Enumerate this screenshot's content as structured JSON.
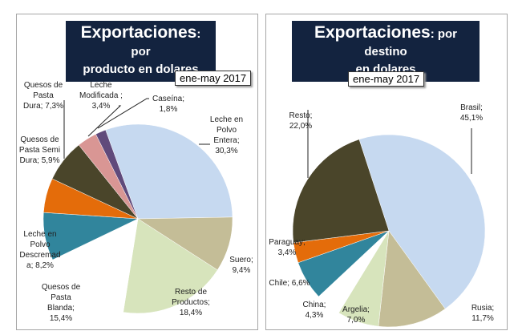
{
  "chart_data": [
    {
      "type": "pie",
      "title_main": "Exportaciones",
      "title_sub1": ": por",
      "title_sub2": "producto en dolares",
      "period": "ene-may 2017",
      "categories": [
        "Leche en Polvo Entera",
        "Suero",
        "Resto de Productos",
        "Quesos de Pasta Blanda",
        "Leche en Polvo Descremada",
        "Quesos de Pasta Semi Dura",
        "Quesos de Pasta Dura",
        "Leche Modificada",
        "Caseína"
      ],
      "values": [
        30.3,
        9.4,
        18.4,
        15.4,
        8.2,
        5.9,
        7.3,
        3.4,
        1.8
      ],
      "labels": [
        "Leche en Polvo Entera; 30,3%",
        "Suero; 9,4%",
        "Resto de Productos; 18,4%",
        "Quesos de Pasta Blanda; 15,4%",
        "Leche en Polvo Descremad a; 8,2%",
        "Quesos de Pasta Semi Dura; 5,9%",
        "Quesos de Pasta Dura; 7,3%",
        "Leche Modificada ; 3,4%",
        "Caseína; 1,8%"
      ],
      "colors": [
        "#c6d9f0",
        "#c4bd97",
        "#d7e4bc",
        "#ffffff",
        "#31859c",
        "#e46c0a",
        "#4a452a",
        "#d99694",
        "#604a7b"
      ]
    },
    {
      "type": "pie",
      "title_main": "Exportaciones",
      "title_sub1": ": por destino",
      "title_sub2": "en dolares",
      "period": "ene-may 2017",
      "categories": [
        "Brasil",
        "Rusia",
        "Argelia",
        "China",
        "Chile",
        "Paraguay",
        "Resto"
      ],
      "values": [
        45.1,
        11.7,
        7.0,
        4.3,
        6.6,
        3.4,
        22.0
      ],
      "labels": [
        "Brasil; 45,1%",
        "Rusia; 11,7%",
        "Argelia; 7,0%",
        "China; 4,3%",
        "Chile; 6,6%",
        "Paraguay; 3,4%",
        "Resto; 22,0%"
      ],
      "colors": [
        "#c6d9f0",
        "#c4bd97",
        "#d7e4bc",
        "#ffffff",
        "#31859c",
        "#e46c0a",
        "#4a452a"
      ]
    }
  ]
}
